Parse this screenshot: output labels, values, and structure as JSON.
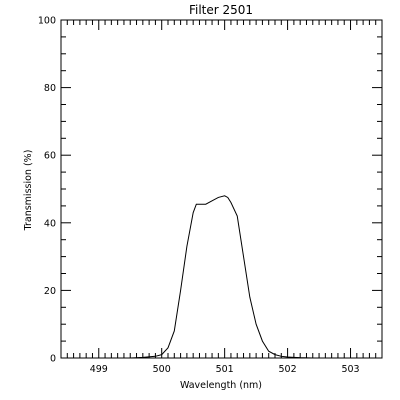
{
  "chart_data": {
    "type": "line",
    "title": "Filter 2501",
    "xlabel": "Wavelength (nm)",
    "ylabel": "Transmission (%)",
    "xlim": [
      498.4,
      503.5
    ],
    "ylim": [
      0,
      100
    ],
    "xticks": [
      499,
      500,
      501,
      502,
      503
    ],
    "yticks": [
      0,
      20,
      40,
      60,
      80,
      100
    ],
    "xtick_labels": [
      "499",
      "500",
      "501",
      "502",
      "503"
    ],
    "ytick_labels": [
      "0",
      "20",
      "40",
      "60",
      "80",
      "100"
    ],
    "grid": false,
    "series": [
      {
        "color": "#000000",
        "x": [
          499.5,
          499.7,
          499.9,
          500.0,
          500.1,
          500.2,
          500.3,
          500.4,
          500.5,
          500.55,
          500.6,
          500.7,
          500.8,
          500.9,
          501.0,
          501.05,
          501.1,
          501.2,
          501.3,
          501.4,
          501.5,
          501.6,
          501.7,
          501.8,
          501.9,
          502.0,
          502.1,
          502.2,
          502.4
        ],
        "y": [
          0,
          0.2,
          0.5,
          1,
          3,
          8,
          20,
          33,
          43,
          45.5,
          45.5,
          45.5,
          46.5,
          47.5,
          48,
          47.5,
          46,
          42,
          30,
          18,
          10,
          5,
          2,
          1,
          0.5,
          0.3,
          0.2,
          0.1,
          0
        ]
      }
    ]
  }
}
